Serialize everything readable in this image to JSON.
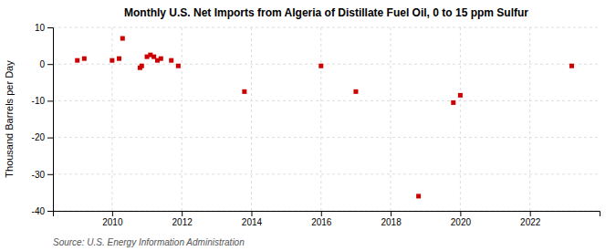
{
  "chart_data": {
    "type": "scatter",
    "title": "Monthly U.S. Net Imports from Algeria of Distillate Fuel Oil, 0 to 15 ppm Sulfur",
    "ylabel": "Thousand Barrels per Day",
    "source": "Source: U.S. Energy Information Administration",
    "x": [
      2009.0,
      2009.2,
      2010.0,
      2010.2,
      2010.3,
      2010.8,
      2010.85,
      2011.0,
      2011.1,
      2011.2,
      2011.3,
      2011.4,
      2011.7,
      2011.9,
      2016.0,
      2013.8,
      2017.0,
      2018.8,
      2019.8,
      2020.0,
      2023.2
    ],
    "values": [
      1.0,
      1.5,
      1.0,
      1.5,
      7.0,
      -1.0,
      -0.5,
      2.0,
      2.5,
      2.0,
      1.0,
      1.5,
      1.0,
      -0.5,
      -0.5,
      -7.5,
      -7.5,
      -36.0,
      -10.5,
      -8.5,
      -0.5
    ],
    "color": "#cc0000",
    "marker": "square",
    "xlim": [
      2008.3,
      2024.0
    ],
    "xticks": [
      2010,
      2012,
      2014,
      2016,
      2018,
      2020,
      2022
    ],
    "ylim": [
      -40,
      10
    ],
    "yticks": [
      -40,
      -30,
      -20,
      -10,
      0,
      10
    ],
    "grid": true
  }
}
